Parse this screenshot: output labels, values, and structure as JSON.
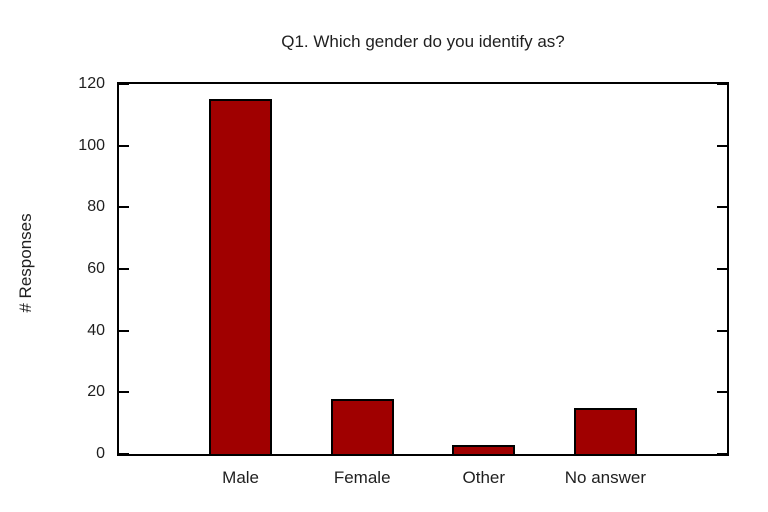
{
  "chart_data": {
    "type": "bar",
    "title": "Q1. Which gender do you identify as?",
    "categories": [
      "Male",
      "Female",
      "Other",
      "No answer"
    ],
    "values": [
      115,
      18,
      3,
      15
    ],
    "xlabel": "",
    "ylabel": "# Responses",
    "ylim": [
      0,
      120
    ],
    "yticks": [
      0,
      20,
      40,
      60,
      80,
      100,
      120
    ],
    "grid": false,
    "legend": "none",
    "colors": {
      "bar_fill": "#a00000",
      "bar_border": "#000000",
      "axis": "#000000",
      "text": "#1f1f1f",
      "background": "#ffffff"
    }
  }
}
